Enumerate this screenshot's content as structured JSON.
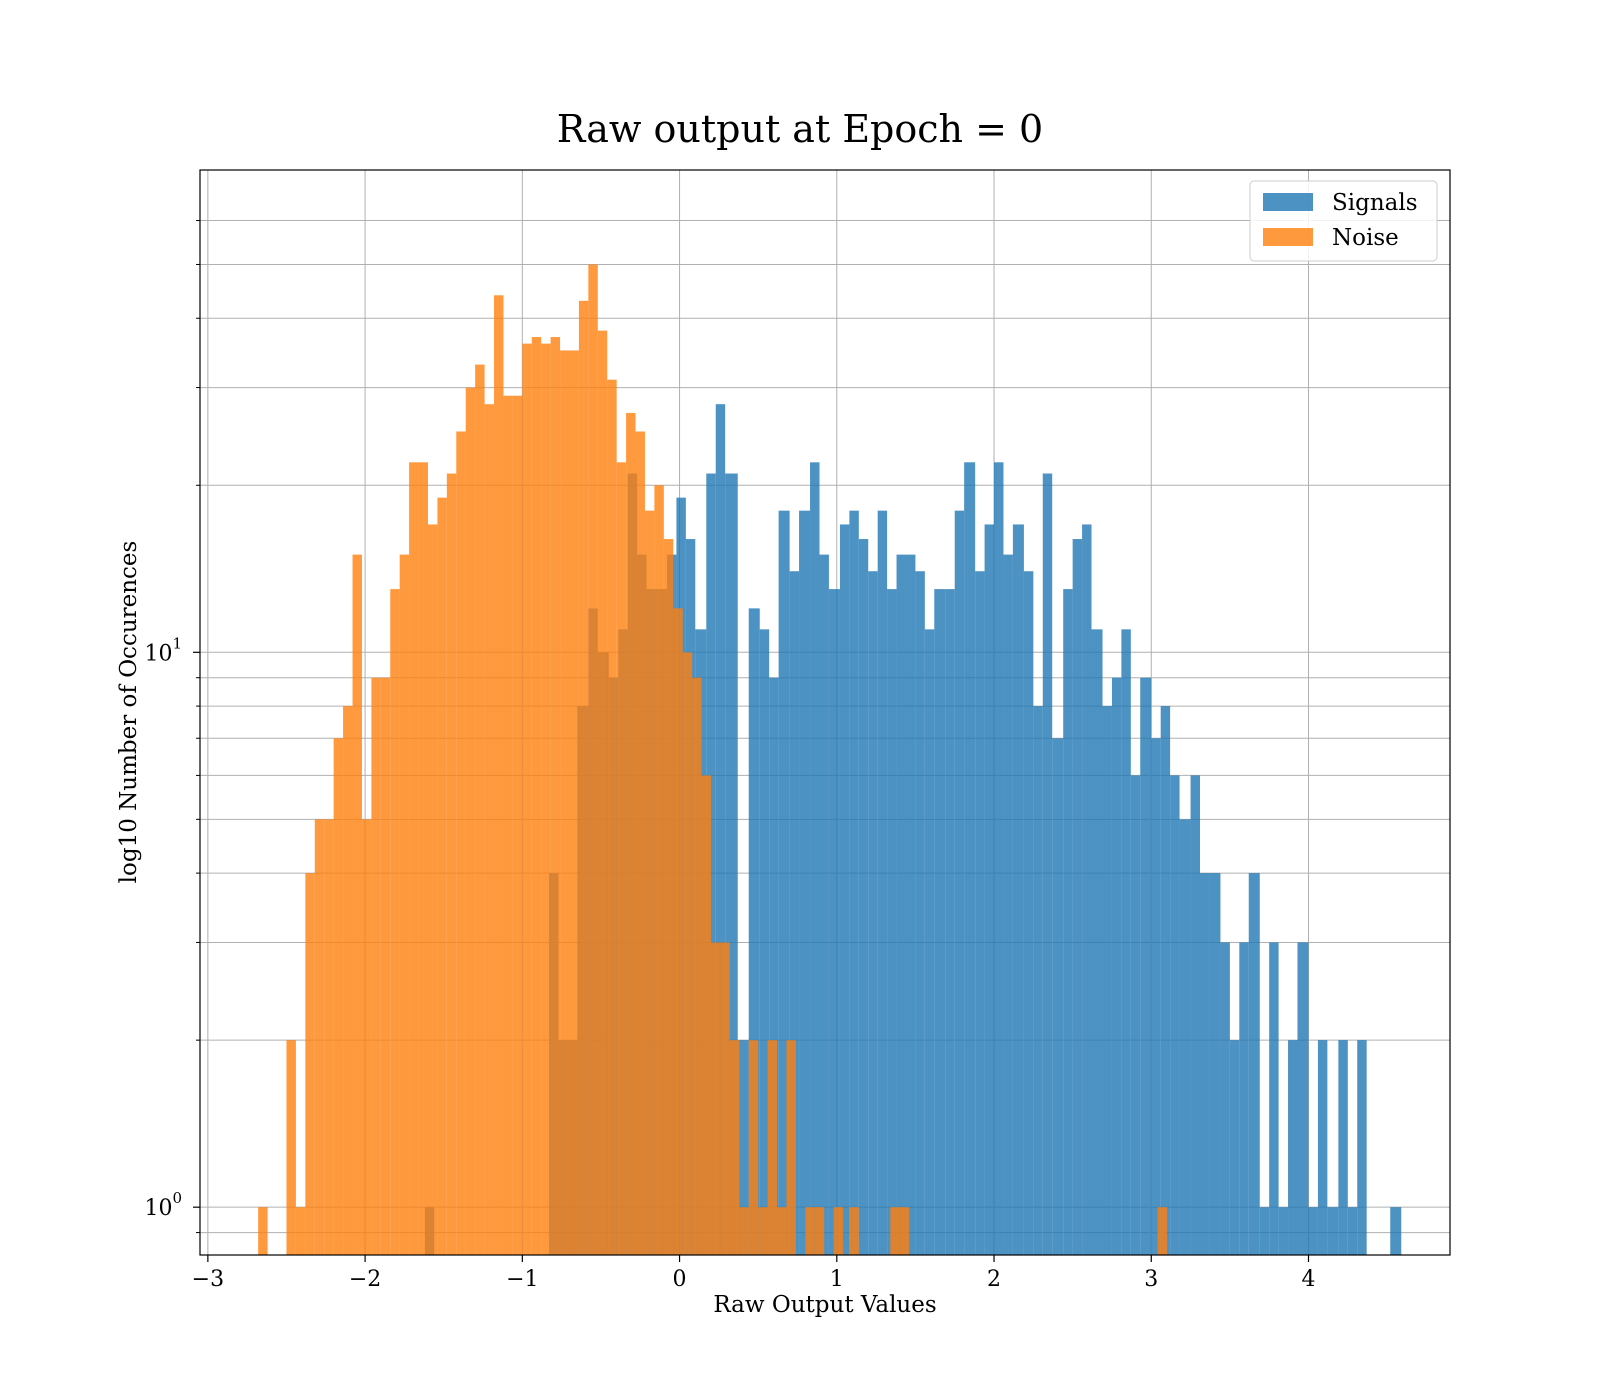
{
  "chart_data": {
    "type": "histogram",
    "title": "Raw output at Epoch = 0",
    "xlabel": "Raw Output Values",
    "ylabel": "log10 Number of Occurences",
    "yscale": "log",
    "xlim": [
      -3.05,
      4.9
    ],
    "ylim": [
      0.82,
      74
    ],
    "grid": true,
    "legend_position": "top-right",
    "x_ticks": [
      {
        "value": -3,
        "label": "−3"
      },
      {
        "value": -2,
        "label": "−2"
      },
      {
        "value": -1,
        "label": "−1"
      },
      {
        "value": 0,
        "label": "0"
      },
      {
        "value": 1,
        "label": "1"
      },
      {
        "value": 2,
        "label": "2"
      },
      {
        "value": 3,
        "label": "3"
      },
      {
        "value": 4,
        "label": "4"
      }
    ],
    "y_major_ticks": [
      {
        "value": 1,
        "base": "10",
        "exp": "0"
      },
      {
        "value": 10,
        "base": "10",
        "exp": "1"
      }
    ],
    "y_minor_ticks": [
      0.9,
      2,
      3,
      4,
      5,
      6,
      7,
      8,
      9,
      20,
      30,
      40,
      50,
      60
    ],
    "series": [
      {
        "name": "Signals",
        "color": "#1f77b4",
        "opacity": 0.8,
        "bins": [
          [
            -1.62,
            -1.56,
            1
          ],
          [
            -0.83,
            -0.77,
            4
          ],
          [
            -0.77,
            -0.71,
            2
          ],
          [
            -0.71,
            -0.65,
            2
          ],
          [
            -0.65,
            -0.58,
            8
          ],
          [
            -0.58,
            -0.52,
            12
          ],
          [
            -0.52,
            -0.45,
            10
          ],
          [
            -0.45,
            -0.39,
            9
          ],
          [
            -0.39,
            -0.33,
            11
          ],
          [
            -0.33,
            -0.27,
            21
          ],
          [
            -0.27,
            -0.21,
            15
          ],
          [
            -0.21,
            -0.14,
            13
          ],
          [
            -0.14,
            -0.08,
            13
          ],
          [
            -0.08,
            -0.02,
            15
          ],
          [
            -0.02,
            0.04,
            19
          ],
          [
            0.04,
            0.1,
            16
          ],
          [
            0.1,
            0.17,
            11
          ],
          [
            0.17,
            0.23,
            21
          ],
          [
            0.23,
            0.29,
            28
          ],
          [
            0.29,
            0.37,
            21
          ],
          [
            0.37,
            0.44,
            2
          ],
          [
            0.44,
            0.51,
            12
          ],
          [
            0.51,
            0.57,
            11
          ],
          [
            0.57,
            0.63,
            9
          ],
          [
            0.63,
            0.7,
            18
          ],
          [
            0.7,
            0.76,
            14
          ],
          [
            0.76,
            0.83,
            18
          ],
          [
            0.83,
            0.89,
            22
          ],
          [
            0.89,
            0.95,
            15
          ],
          [
            0.95,
            1.02,
            13
          ],
          [
            1.02,
            1.08,
            17
          ],
          [
            1.08,
            1.14,
            18
          ],
          [
            1.14,
            1.2,
            16
          ],
          [
            1.2,
            1.26,
            14
          ],
          [
            1.26,
            1.32,
            18
          ],
          [
            1.32,
            1.38,
            13
          ],
          [
            1.38,
            1.44,
            15
          ],
          [
            1.44,
            1.5,
            15
          ],
          [
            1.5,
            1.56,
            14
          ],
          [
            1.56,
            1.62,
            11
          ],
          [
            1.62,
            1.69,
            13
          ],
          [
            1.69,
            1.75,
            13
          ],
          [
            1.75,
            1.81,
            18
          ],
          [
            1.81,
            1.88,
            22
          ],
          [
            1.88,
            1.94,
            14
          ],
          [
            1.94,
            2.0,
            17
          ],
          [
            2.0,
            2.06,
            22
          ],
          [
            2.06,
            2.12,
            15
          ],
          [
            2.12,
            2.19,
            17
          ],
          [
            2.19,
            2.25,
            14
          ],
          [
            2.25,
            2.31,
            8
          ],
          [
            2.31,
            2.37,
            21
          ],
          [
            2.37,
            2.44,
            7
          ],
          [
            2.44,
            2.5,
            13
          ],
          [
            2.5,
            2.56,
            16
          ],
          [
            2.56,
            2.62,
            17
          ],
          [
            2.62,
            2.69,
            11
          ],
          [
            2.69,
            2.75,
            8
          ],
          [
            2.75,
            2.81,
            9
          ],
          [
            2.81,
            2.87,
            11
          ],
          [
            2.87,
            2.93,
            6
          ],
          [
            2.93,
            3.0,
            9
          ],
          [
            3.0,
            3.06,
            7
          ],
          [
            3.06,
            3.12,
            8
          ],
          [
            3.12,
            3.18,
            6
          ],
          [
            3.18,
            3.25,
            5
          ],
          [
            3.25,
            3.31,
            6
          ],
          [
            3.31,
            3.37,
            4
          ],
          [
            3.37,
            3.44,
            4
          ],
          [
            3.44,
            3.5,
            3
          ],
          [
            3.5,
            3.56,
            2
          ],
          [
            3.56,
            3.62,
            3
          ],
          [
            3.62,
            3.69,
            4
          ],
          [
            3.69,
            3.75,
            1
          ],
          [
            3.75,
            3.81,
            3
          ],
          [
            3.81,
            3.87,
            1
          ],
          [
            3.87,
            3.93,
            2
          ],
          [
            3.93,
            4.0,
            3
          ],
          [
            4.0,
            4.06,
            1
          ],
          [
            4.06,
            4.12,
            2
          ],
          [
            4.12,
            4.19,
            1
          ],
          [
            4.19,
            4.25,
            2
          ],
          [
            4.25,
            4.31,
            1
          ],
          [
            4.31,
            4.37,
            2
          ],
          [
            4.52,
            4.59,
            1
          ]
        ]
      },
      {
        "name": "Noise",
        "color": "#ff7f0e",
        "opacity": 0.8,
        "bins": [
          [
            -2.68,
            -2.62,
            1
          ],
          [
            -2.5,
            -2.44,
            2
          ],
          [
            -2.44,
            -2.38,
            1
          ],
          [
            -2.38,
            -2.32,
            4
          ],
          [
            -2.32,
            -2.26,
            5
          ],
          [
            -2.26,
            -2.2,
            5
          ],
          [
            -2.2,
            -2.14,
            7
          ],
          [
            -2.14,
            -2.08,
            8
          ],
          [
            -2.08,
            -2.02,
            15
          ],
          [
            -2.02,
            -1.96,
            5
          ],
          [
            -1.96,
            -1.9,
            9
          ],
          [
            -1.9,
            -1.84,
            9
          ],
          [
            -1.84,
            -1.78,
            13
          ],
          [
            -1.78,
            -1.72,
            15
          ],
          [
            -1.72,
            -1.66,
            22
          ],
          [
            -1.66,
            -1.6,
            22
          ],
          [
            -1.6,
            -1.54,
            17
          ],
          [
            -1.54,
            -1.48,
            19
          ],
          [
            -1.48,
            -1.42,
            21
          ],
          [
            -1.42,
            -1.36,
            25
          ],
          [
            -1.36,
            -1.3,
            30
          ],
          [
            -1.3,
            -1.24,
            33
          ],
          [
            -1.24,
            -1.18,
            28
          ],
          [
            -1.18,
            -1.12,
            44
          ],
          [
            -1.12,
            -1.06,
            29
          ],
          [
            -1.06,
            -1.0,
            29
          ],
          [
            -1.0,
            -0.94,
            36
          ],
          [
            -0.94,
            -0.88,
            37
          ],
          [
            -0.88,
            -0.82,
            36
          ],
          [
            -0.82,
            -0.76,
            37
          ],
          [
            -0.76,
            -0.7,
            35
          ],
          [
            -0.7,
            -0.64,
            35
          ],
          [
            -0.64,
            -0.58,
            43
          ],
          [
            -0.58,
            -0.52,
            50
          ],
          [
            -0.52,
            -0.46,
            38
          ],
          [
            -0.46,
            -0.4,
            31
          ],
          [
            -0.4,
            -0.34,
            22
          ],
          [
            -0.34,
            -0.28,
            27
          ],
          [
            -0.28,
            -0.22,
            25
          ],
          [
            -0.22,
            -0.16,
            18
          ],
          [
            -0.16,
            -0.1,
            20
          ],
          [
            -0.1,
            -0.04,
            16
          ],
          [
            -0.04,
            0.02,
            12
          ],
          [
            0.02,
            0.08,
            10
          ],
          [
            0.08,
            0.14,
            9
          ],
          [
            0.14,
            0.2,
            6
          ],
          [
            0.2,
            0.26,
            3
          ],
          [
            0.26,
            0.32,
            3
          ],
          [
            0.32,
            0.38,
            2
          ],
          [
            0.38,
            0.44,
            1
          ],
          [
            0.44,
            0.5,
            2
          ],
          [
            0.5,
            0.56,
            1
          ],
          [
            0.56,
            0.62,
            2
          ],
          [
            0.62,
            0.68,
            1
          ],
          [
            0.68,
            0.74,
            2
          ],
          [
            0.8,
            0.86,
            1
          ],
          [
            0.86,
            0.92,
            1
          ],
          [
            0.98,
            1.04,
            1
          ],
          [
            1.08,
            1.14,
            1
          ],
          [
            1.34,
            1.4,
            1
          ],
          [
            1.4,
            1.46,
            1
          ],
          [
            3.04,
            3.1,
            1
          ]
        ]
      }
    ]
  }
}
